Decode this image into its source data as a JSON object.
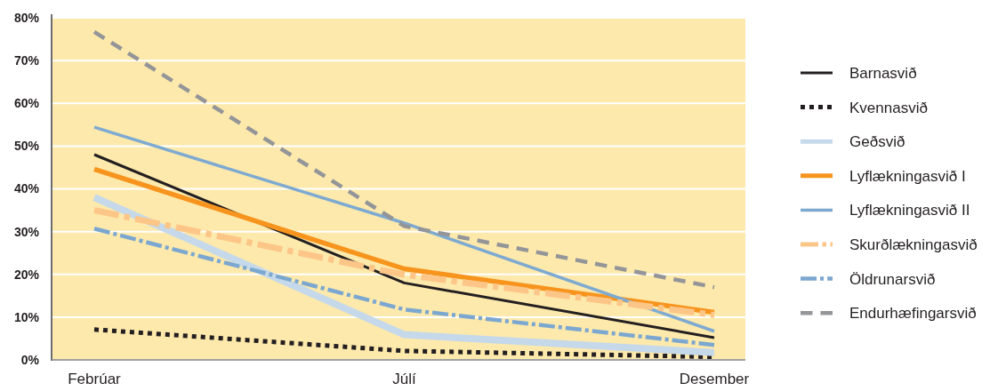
{
  "chart_data": {
    "type": "line",
    "categories": [
      "Febrúar",
      "Júlí",
      "Desember"
    ],
    "series": [
      {
        "name": "Barnasvið",
        "color": "#231f20",
        "values": [
          48,
          18,
          5.2
        ],
        "line_style": "solid"
      },
      {
        "name": "Kvennasvið",
        "color": "#231f20",
        "values": [
          7.1,
          2.1,
          0.7
        ],
        "line_style": "dotted"
      },
      {
        "name": "Geðsvið",
        "color": "#c5d9ea",
        "values": [
          38,
          5.9,
          1.7
        ],
        "line_style": "solid"
      },
      {
        "name": "Lyflækningasvið I",
        "color": "#f7941d",
        "values": [
          44.6,
          21.3,
          11.1
        ],
        "line_style": "solid"
      },
      {
        "name": "Lyflækningasvið II",
        "color": "#7eaad2",
        "values": [
          54.4,
          32,
          6.7
        ],
        "line_style": "solid"
      },
      {
        "name": "Skurðlækningasvið",
        "color": "#fdc689",
        "values": [
          35,
          19.9,
          10.5
        ],
        "line_style": "dashdot"
      },
      {
        "name": "Öldrunarsvið",
        "color": "#7ba7d0",
        "values": [
          30.7,
          11.8,
          3.5
        ],
        "line_style": "dashdot"
      },
      {
        "name": "Endurhæfingarsvið",
        "color": "#939598",
        "values": [
          76.7,
          31.3,
          17
        ],
        "line_style": "dashed"
      }
    ],
    "ylim": [
      0,
      80
    ],
    "yticks": [
      {
        "value": 0,
        "label": "0%"
      },
      {
        "value": 10,
        "label": "10%"
      },
      {
        "value": 20,
        "label": "20%"
      },
      {
        "value": 30,
        "label": "30%"
      },
      {
        "value": 40,
        "label": "40%"
      },
      {
        "value": 50,
        "label": "50%"
      },
      {
        "value": 60,
        "label": "60%"
      },
      {
        "value": 70,
        "label": "70%"
      },
      {
        "value": 80,
        "label": "80%"
      }
    ],
    "grid": "y",
    "legend": "right",
    "marker": "none"
  }
}
